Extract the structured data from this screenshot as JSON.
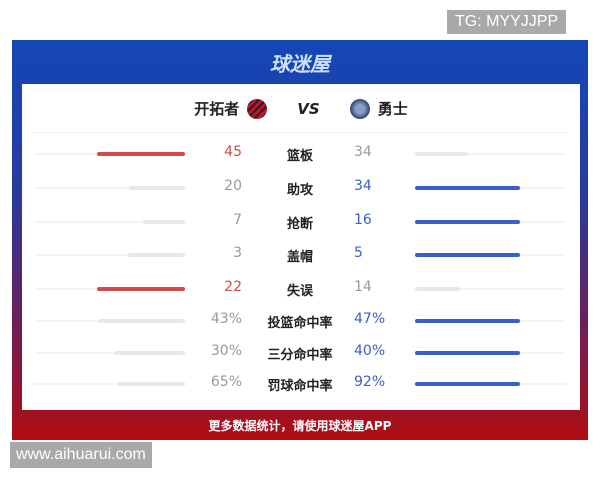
{
  "watermarks": {
    "top": "TG: MYYJJPP",
    "bottom": "www.aihuarui.com"
  },
  "brand": "球迷屋",
  "teams": {
    "left": "开拓者",
    "vs": "VS",
    "right": "勇士"
  },
  "colors": {
    "left_highlight": "#d44a4a",
    "right_highlight": "#3b5fc8",
    "muted": "#999999"
  },
  "stats": [
    {
      "label": "篮板",
      "left": "45",
      "right": "34",
      "lnum": 45,
      "rnum": 34,
      "winner": "left"
    },
    {
      "label": "助攻",
      "left": "20",
      "right": "34",
      "lnum": 20,
      "rnum": 34,
      "winner": "right"
    },
    {
      "label": "抢断",
      "left": "7",
      "right": "16",
      "lnum": 7,
      "rnum": 16,
      "winner": "right"
    },
    {
      "label": "盖帽",
      "left": "3",
      "right": "5",
      "lnum": 3,
      "rnum": 5,
      "winner": "right"
    },
    {
      "label": "失误",
      "left": "22",
      "right": "14",
      "lnum": 22,
      "rnum": 14,
      "winner": "left"
    },
    {
      "label": "投篮命中率",
      "left": "43%",
      "right": "47%",
      "lnum": 43,
      "rnum": 47,
      "winner": "right"
    },
    {
      "label": "三分命中率",
      "left": "30%",
      "right": "40%",
      "lnum": 30,
      "rnum": 40,
      "winner": "right"
    },
    {
      "label": "罚球命中率",
      "left": "65%",
      "right": "92%",
      "lnum": 65,
      "rnum": 92,
      "winner": "right"
    }
  ],
  "footer": "更多数据统计，请使用球迷屋APP"
}
